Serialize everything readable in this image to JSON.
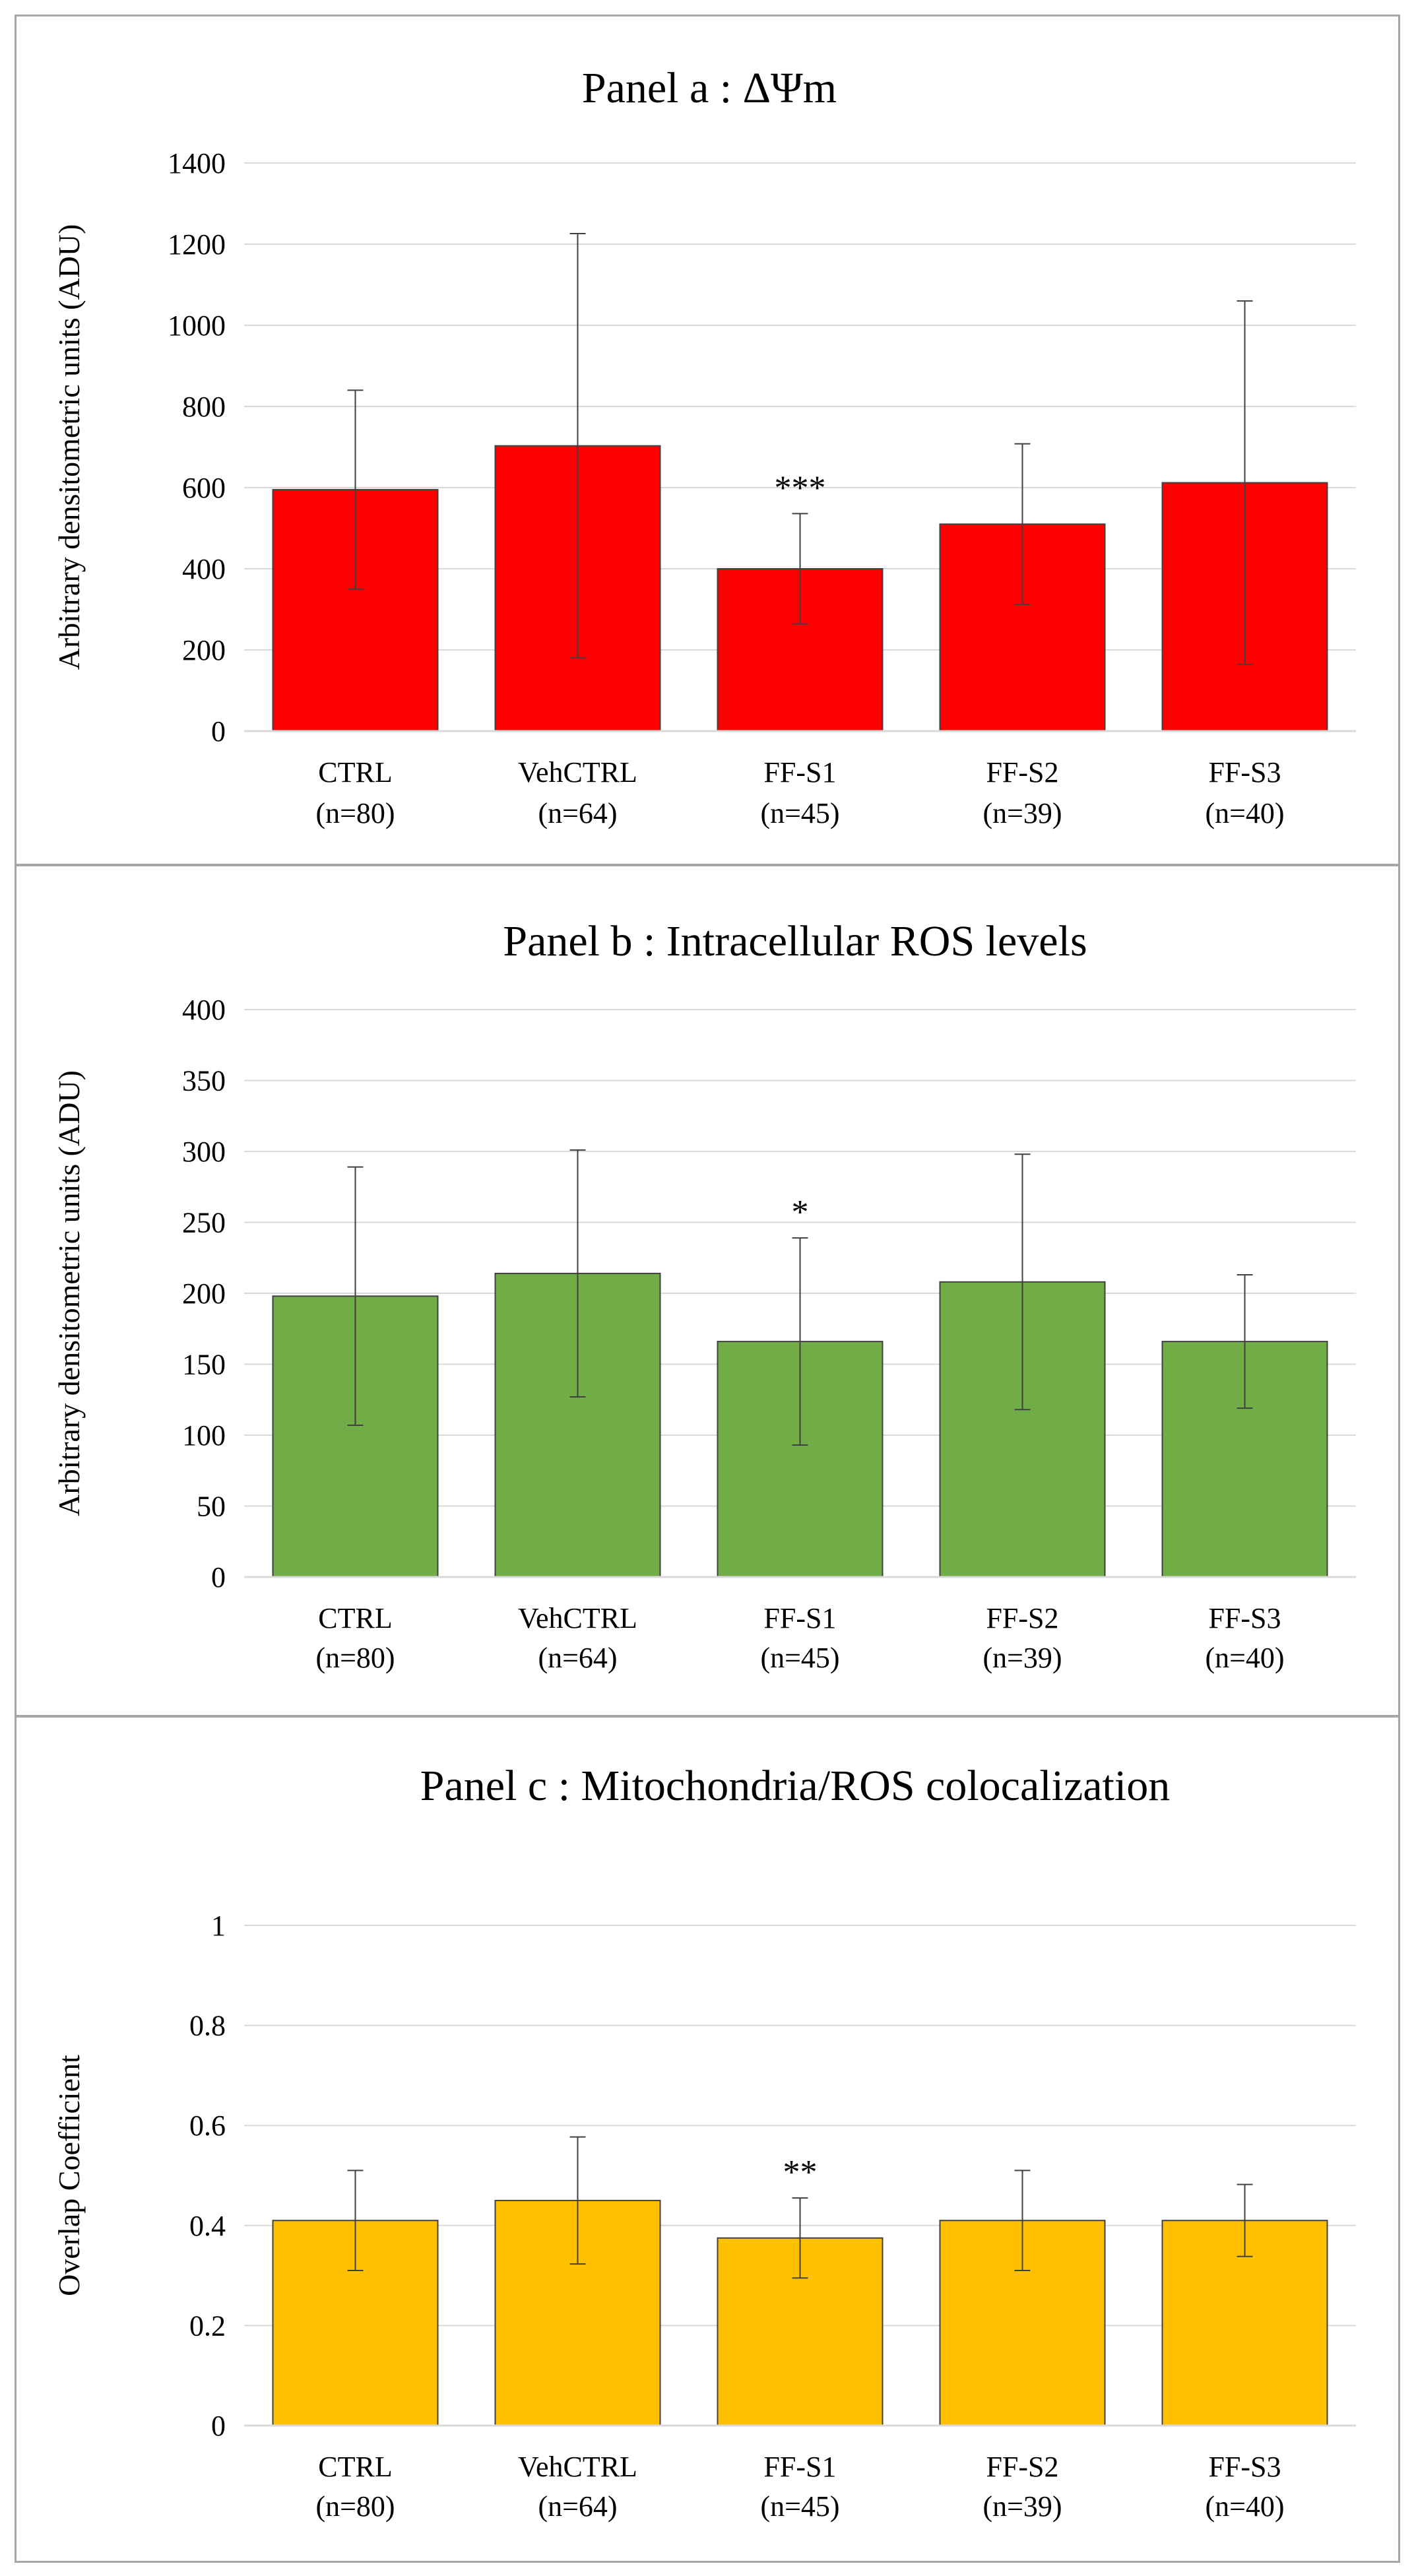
{
  "chart_data": [
    {
      "type": "bar",
      "title": "Panel a : ΔΨm",
      "ylabel": "Arbitrary densitometric units (ADU)",
      "categories": [
        "CTRL",
        "VehCTRL",
        "FF-S1",
        "FF-S2",
        "FF-S3"
      ],
      "sample_sizes": [
        "(n=80)",
        "(n=64)",
        "(n=45)",
        "(n=39)",
        "(n=40)"
      ],
      "values": [
        595,
        703,
        400,
        510,
        612
      ],
      "errors": [
        245,
        523,
        136,
        198,
        448
      ],
      "significance": [
        "",
        "",
        "***",
        "",
        ""
      ],
      "ylim": [
        0,
        1400
      ],
      "yticks": [
        0,
        200,
        400,
        600,
        800,
        1000,
        1200,
        1400
      ],
      "ytick_labels": [
        "0",
        "200",
        "400",
        "600",
        "800",
        "1000",
        "1200",
        "1400"
      ],
      "color": "#ff0000",
      "grid": true
    },
    {
      "type": "bar",
      "title": "Panel b : Intracellular ROS levels",
      "ylabel": "Arbitrary densitometric units (ADU)",
      "categories": [
        "CTRL",
        "VehCTRL",
        "FF-S1",
        "FF-S2",
        "FF-S3"
      ],
      "sample_sizes": [
        "(n=80)",
        "(n=64)",
        "(n=45)",
        "(n=39)",
        "(n=40)"
      ],
      "values": [
        198,
        214,
        166,
        208,
        166
      ],
      "errors": [
        91,
        87,
        73,
        90,
        47
      ],
      "significance": [
        "",
        "",
        "*",
        "",
        ""
      ],
      "ylim": [
        0,
        400
      ],
      "yticks": [
        0,
        50,
        100,
        150,
        200,
        250,
        300,
        350,
        400
      ],
      "ytick_labels": [
        "0",
        "50",
        "100",
        "150",
        "200",
        "250",
        "300",
        "350",
        "400"
      ],
      "color": "#70ad47",
      "grid": true
    },
    {
      "type": "bar",
      "title": "Panel c : Mitochondria/ROS colocalization",
      "ylabel": "Overlap Coefficient",
      "categories": [
        "CTRL",
        "VehCTRL",
        "FF-S1",
        "FF-S2",
        "FF-S3"
      ],
      "sample_sizes": [
        "(n=80)",
        "(n=64)",
        "(n=45)",
        "(n=39)",
        "(n=40)"
      ],
      "values": [
        0.41,
        0.45,
        0.375,
        0.41,
        0.41
      ],
      "errors": [
        0.1,
        0.127,
        0.08,
        0.1,
        0.072
      ],
      "significance": [
        "",
        "",
        "**",
        "",
        ""
      ],
      "ylim": [
        0,
        1
      ],
      "yticks": [
        0,
        0.2,
        0.4,
        0.6,
        0.8,
        1
      ],
      "ytick_labels": [
        "0",
        "0.2",
        "0.4",
        "0.6",
        "0.8",
        "1"
      ],
      "color": "#ffc000",
      "grid": true
    }
  ]
}
